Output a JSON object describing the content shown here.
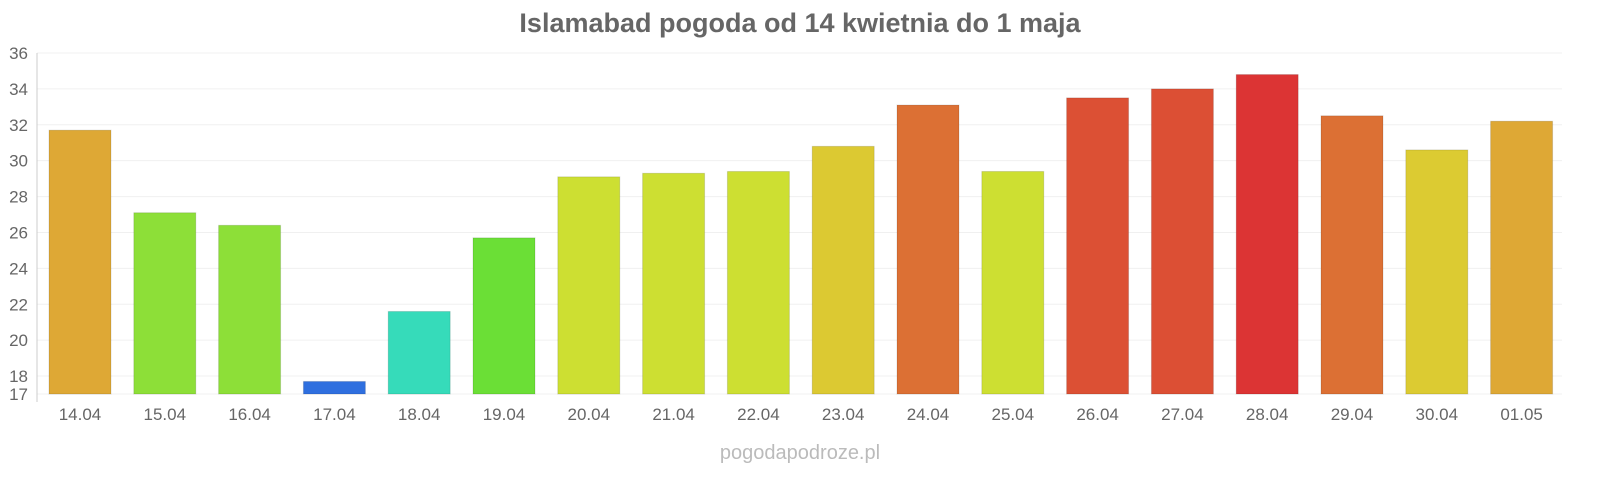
{
  "chart_data": {
    "type": "bar",
    "title": "Islamabad pogoda od 14 kwietnia do 1 maja",
    "xlabel": "",
    "ylabel": "",
    "ylim": [
      17,
      36
    ],
    "yticks": [
      17,
      18,
      20,
      22,
      24,
      26,
      28,
      30,
      32,
      34,
      36
    ],
    "grid": true,
    "categories": [
      "14.04",
      "15.04",
      "16.04",
      "17.04",
      "18.04",
      "19.04",
      "20.04",
      "21.04",
      "22.04",
      "23.04",
      "24.04",
      "25.04",
      "26.04",
      "27.04",
      "28.04",
      "29.04",
      "30.04",
      "01.05"
    ],
    "values": [
      31.7,
      27.1,
      26.4,
      17.7,
      21.6,
      25.7,
      29.1,
      29.3,
      29.4,
      30.8,
      33.1,
      29.4,
      33.5,
      34.0,
      34.8,
      32.5,
      30.6,
      32.2
    ],
    "colors": [
      "#dea835",
      "#8ddf38",
      "#8ddf38",
      "#2f6fdf",
      "#36dbba",
      "#6bdf36",
      "#cddf32",
      "#cddf32",
      "#cddf32",
      "#dcc932",
      "#dc7034",
      "#cddf32",
      "#dc5034",
      "#dc4f34",
      "#dc3434",
      "#dc7034",
      "#dccb32",
      "#dea835"
    ]
  },
  "footer": "pogodapodroze.pl"
}
